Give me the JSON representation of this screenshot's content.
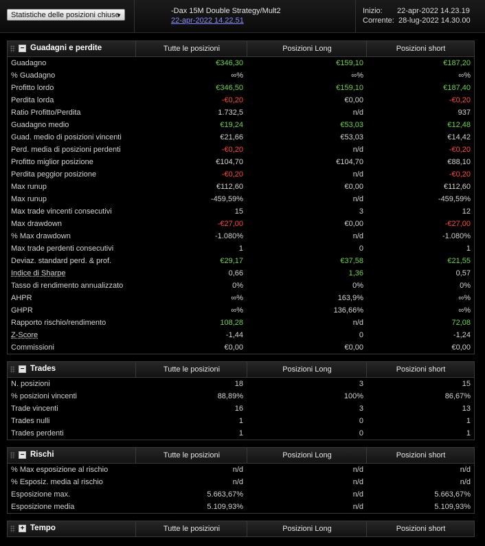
{
  "topbar": {
    "dropdown_label": "Statistiche delle posizioni chiuse",
    "strategy_title": "-Dax 15M Double Strategy/Mult2",
    "strategy_date": "22-apr-2022 14.22.51",
    "start_label": "Inizio:",
    "start_value": "22-apr-2022 14.23.19",
    "current_label": "Corrente:",
    "current_value": "28-lug-2022 14.30.00"
  },
  "columns": {
    "all": "Tutte le posizioni",
    "long": "Posizioni Long",
    "short": "Posizioni short"
  },
  "panels": {
    "gains": {
      "title": "Guadagni e perdite",
      "toggle": "−",
      "rows": [
        {
          "label": "Guadagno",
          "all": "€346,30",
          "long": "€159,10",
          "short": "€187,20"
        },
        {
          "label": "% Guadagno",
          "all": "∞%",
          "long": "∞%",
          "short": "∞%"
        },
        {
          "label": "Profitto lordo",
          "all": "€346,50",
          "long": "€159,10",
          "short": "€187,40"
        },
        {
          "label": "Perdita lorda",
          "all": "-€0,20",
          "long": "€0,00",
          "short": "-€0,20"
        },
        {
          "label": "Ratio Profitto/Perdita",
          "all": "1.732,5",
          "long": "n/d",
          "short": "937"
        },
        {
          "label": "Guadagno medio",
          "all": "€19,24",
          "long": "€53,03",
          "short": "€12,48"
        },
        {
          "label": "Guad. medio di posizioni vincenti",
          "all": "€21,66",
          "long": "€53,03",
          "short": "€14,42"
        },
        {
          "label": "Perd. media di posizioni perdenti",
          "all": "-€0,20",
          "long": "n/d",
          "short": "-€0,20"
        },
        {
          "label": "Profitto miglior posizione",
          "all": "€104,70",
          "long": "€104,70",
          "short": "€88,10"
        },
        {
          "label": "Perdita peggior posizione",
          "all": "-€0,20",
          "long": "n/d",
          "short": "-€0,20"
        },
        {
          "label": "Max runup",
          "all": "€112,60",
          "long": "€0,00",
          "short": "€112,60"
        },
        {
          "label": "Max runup",
          "all": "-459,59%",
          "long": "n/d",
          "short": "-459,59%"
        },
        {
          "label": "Max trade vincenti consecutivi",
          "all": "15",
          "long": "3",
          "short": "12"
        },
        {
          "label": "Max drawdown",
          "all": "-€27,00",
          "long": "€0,00",
          "short": "-€27,00"
        },
        {
          "label": "% Max drawdown",
          "all": "-1.080%",
          "long": "n/d",
          "short": "-1.080%"
        },
        {
          "label": "Max trade perdenti consecutivi",
          "all": "1",
          "long": "0",
          "short": "1"
        },
        {
          "label": "Deviaz. standard perd. & prof.",
          "all": "€29,17",
          "long": "€37,58",
          "short": "€21,55"
        },
        {
          "label": "Indice di Sharpe",
          "all": "0,66",
          "long": "1,36",
          "short": "0,57"
        },
        {
          "label": "Tasso di rendimento annualizzato",
          "all": "0%",
          "long": "0%",
          "short": "0%"
        },
        {
          "label": "AHPR",
          "all": "∞%",
          "long": "163,9%",
          "short": "∞%"
        },
        {
          "label": "GHPR",
          "all": "∞%",
          "long": "136,66%",
          "short": "∞%"
        },
        {
          "label": "Rapporto rischio/rendimento",
          "all": "108,28",
          "long": "n/d",
          "short": "72,08"
        },
        {
          "label": "Z-Score",
          "all": "-1,44",
          "long": "0",
          "short": "-1,24"
        },
        {
          "label": "Commissioni",
          "all": "€0,00",
          "long": "€0,00",
          "short": "€0,00"
        }
      ]
    },
    "trades": {
      "title": "Trades",
      "toggle": "−",
      "rows": [
        {
          "label": "N. posizioni",
          "all": "18",
          "long": "3",
          "short": "15"
        },
        {
          "label": "% posizioni vincenti",
          "all": "88,89%",
          "long": "100%",
          "short": "86,67%"
        },
        {
          "label": "Trade vincenti",
          "all": "16",
          "long": "3",
          "short": "13"
        },
        {
          "label": "Trades nulli",
          "all": "1",
          "long": "0",
          "short": "1"
        },
        {
          "label": "Trades perdenti",
          "all": "1",
          "long": "0",
          "short": "1"
        }
      ]
    },
    "risks": {
      "title": "Rischi",
      "toggle": "−",
      "rows": [
        {
          "label": "% Max esposizione al rischio",
          "all": "n/d",
          "long": "n/d",
          "short": "n/d"
        },
        {
          "label": "% Esposiz. media al rischio",
          "all": "n/d",
          "long": "n/d",
          "short": "n/d"
        },
        {
          "label": "Esposizione max.",
          "all": "5.663,67%",
          "long": "n/d",
          "short": "5.663,67%"
        },
        {
          "label": "Esposizione media",
          "all": "5.109,93%",
          "long": "n/d",
          "short": "5.109,93%"
        }
      ]
    },
    "time": {
      "title": "Tempo",
      "toggle": "+"
    }
  },
  "colors": {
    "positive": "#6fd44a",
    "negative": "#ff4a3d",
    "link": "#8c8cff"
  }
}
